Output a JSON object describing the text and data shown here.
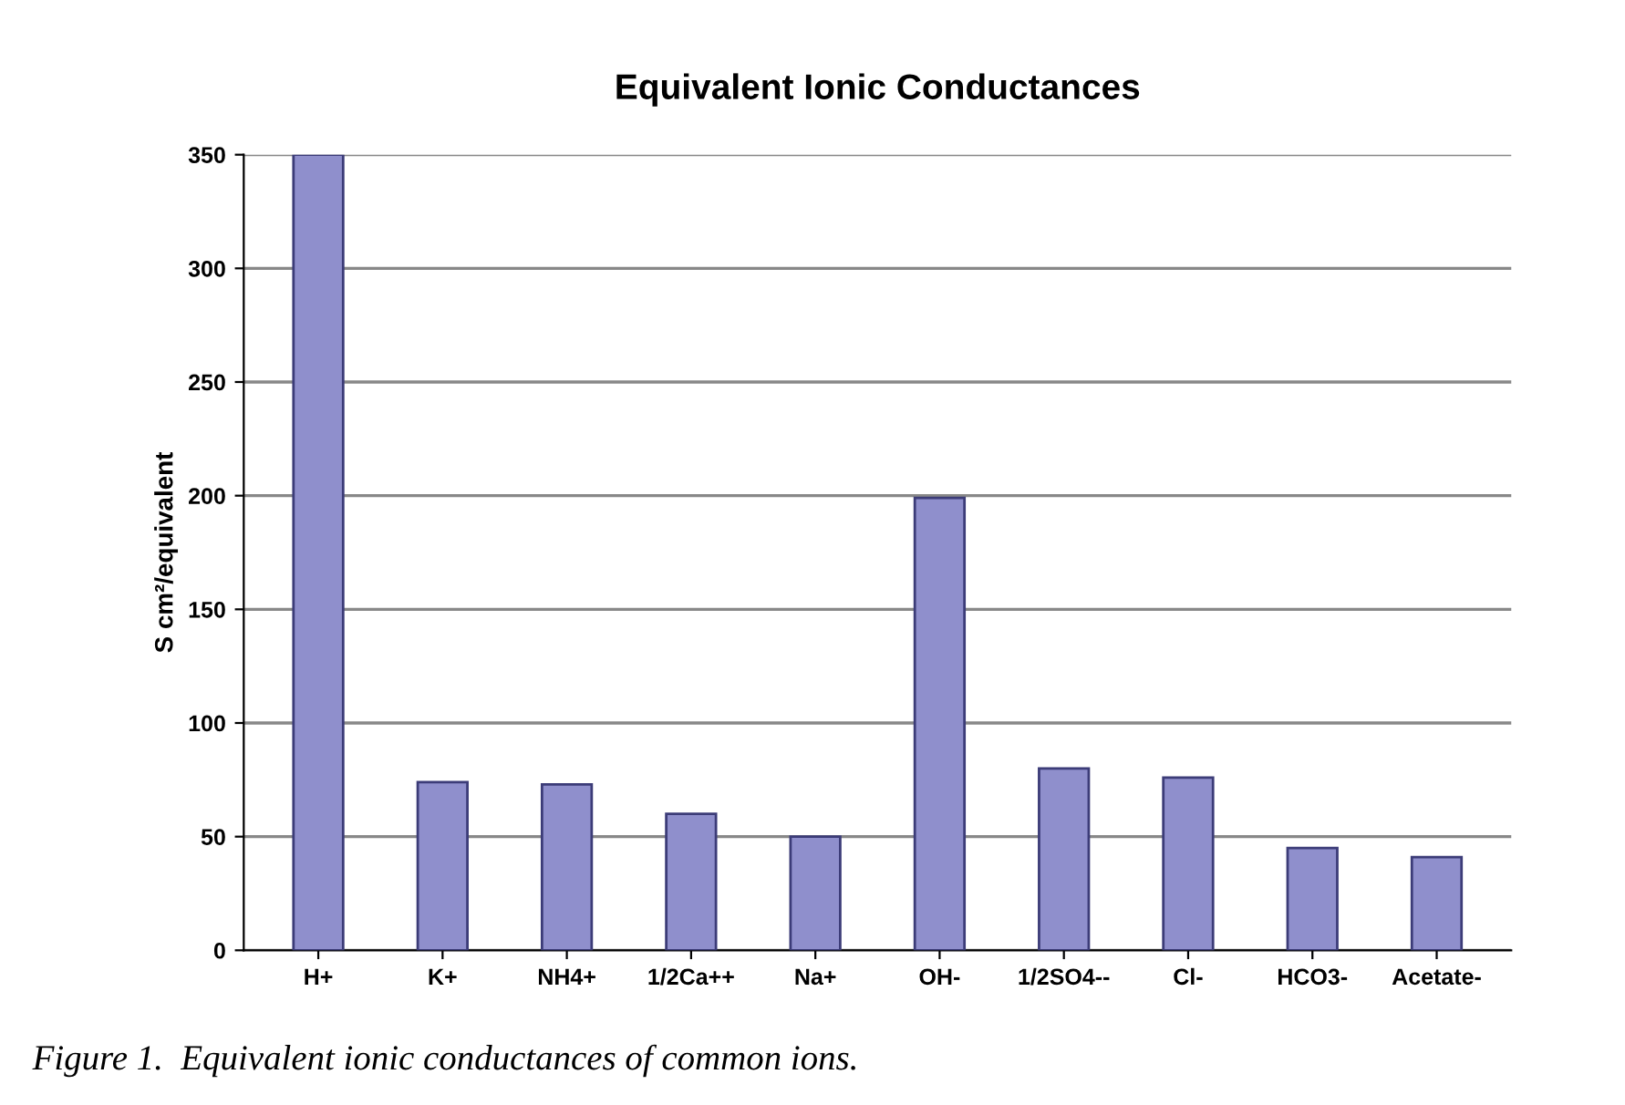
{
  "chart_data": {
    "type": "bar",
    "title": "Equivalent Ionic Conductances",
    "ylabel": "S cm²/equivalent",
    "categories": [
      "H+",
      "K+",
      "NH4+",
      "1/2Ca++",
      "Na+",
      "OH-",
      "1/2SO4--",
      "Cl-",
      "HCO3-",
      "Acetate-"
    ],
    "values": [
      350,
      74,
      73,
      60,
      50,
      199,
      80,
      76,
      45,
      41
    ],
    "color": "#8f8fcc",
    "ylim": [
      0,
      350
    ],
    "yticks": [
      0,
      50,
      100,
      150,
      200,
      250,
      300,
      350
    ],
    "grid": "y",
    "annotations": [
      "Figure 1.  Equivalent ionic conductances of common ions."
    ]
  }
}
